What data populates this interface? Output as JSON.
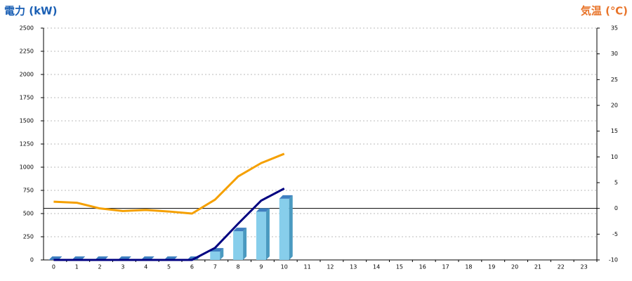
{
  "chart_data": {
    "type": "bar",
    "ylabel": "電力 (kW)",
    "y2label": "気温 (℃)",
    "categories": [
      "0",
      "1",
      "2",
      "3",
      "4",
      "5",
      "6",
      "7",
      "8",
      "9",
      "10",
      "11",
      "12",
      "13",
      "14",
      "15",
      "16",
      "17",
      "18",
      "19",
      "20",
      "21",
      "22",
      "23"
    ],
    "series": [
      {
        "type": "bar",
        "color": "#87ceeb",
        "values": [
          0,
          0,
          0,
          0,
          0,
          0,
          0,
          90,
          310,
          520,
          660,
          null,
          null,
          null,
          null,
          null,
          null,
          null,
          null,
          null,
          null,
          null,
          null,
          null
        ]
      },
      {
        "type": "line",
        "color": "#000080",
        "values": [
          0,
          0,
          0,
          0,
          0,
          0,
          0,
          130,
          390,
          640,
          770,
          null,
          null,
          null,
          null,
          null,
          null,
          null,
          null,
          null,
          null,
          null,
          null,
          null
        ]
      },
      {
        "type": "line",
        "axis": "y2",
        "color": "#f5a000",
        "values": [
          1.3,
          1.1,
          0,
          -0.5,
          -0.3,
          -0.6,
          -1.0,
          1.7,
          6.2,
          8.8,
          10.6,
          null,
          null,
          null,
          null,
          null,
          null,
          null,
          null,
          null,
          null,
          null,
          null,
          null
        ]
      }
    ],
    "ylim": [
      0,
      2500
    ],
    "yticks": [
      0,
      250,
      500,
      750,
      1000,
      1250,
      1500,
      1750,
      2000,
      2250,
      2500
    ],
    "y2lim": [
      -10,
      35
    ],
    "y2ticks": [
      -10,
      -5,
      0,
      5,
      10,
      15,
      20,
      25,
      30,
      35
    ],
    "grid": true
  }
}
